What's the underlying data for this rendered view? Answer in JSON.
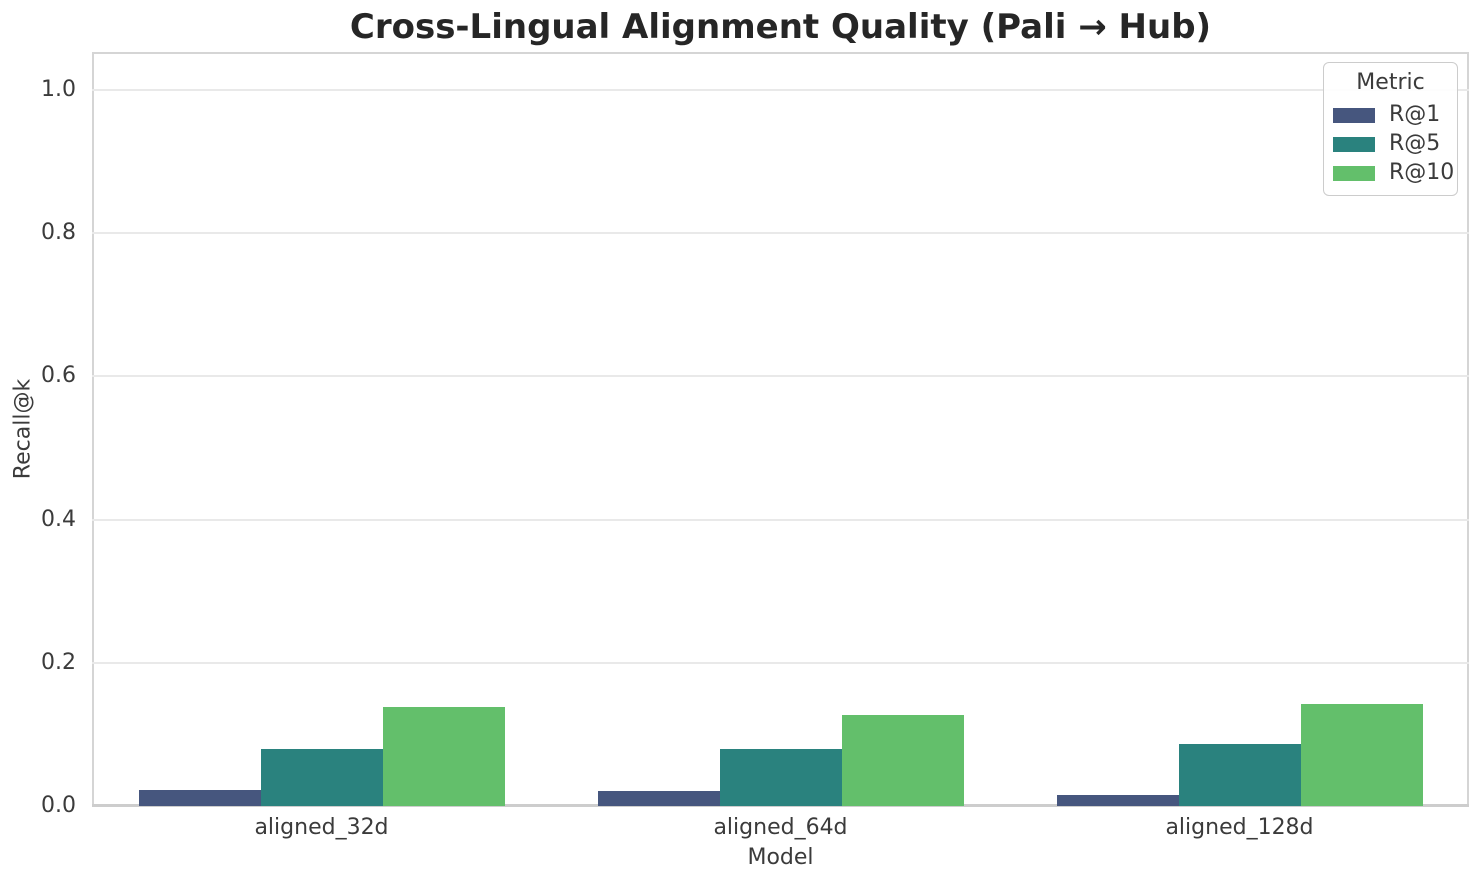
{
  "chart_data": {
    "type": "bar",
    "title": "Cross-Lingual Alignment Quality (Pali → Hub)",
    "xlabel": "Model",
    "ylabel": "Recall@k",
    "categories": [
      "aligned_32d",
      "aligned_64d",
      "aligned_128d"
    ],
    "series": [
      {
        "name": "R@1",
        "color": "#46567e",
        "values": [
          0.022,
          0.021,
          0.016
        ]
      },
      {
        "name": "R@5",
        "color": "#2a827e",
        "values": [
          0.079,
          0.079,
          0.087
        ]
      },
      {
        "name": "R@10",
        "color": "#63bf6b",
        "values": [
          0.138,
          0.127,
          0.142
        ]
      }
    ],
    "legend": {
      "title": "Metric",
      "position": "upper right"
    },
    "yticks": {
      "values": [
        0,
        0.2,
        0.4,
        0.6,
        0.8,
        1.0
      ],
      "labels": [
        "0.0",
        "0.2",
        "0.4",
        "0.6",
        "0.8",
        "1.0"
      ]
    },
    "ylim": [
      0,
      1.053
    ],
    "grid": "horizontal",
    "bar_group_width": 0.8
  }
}
